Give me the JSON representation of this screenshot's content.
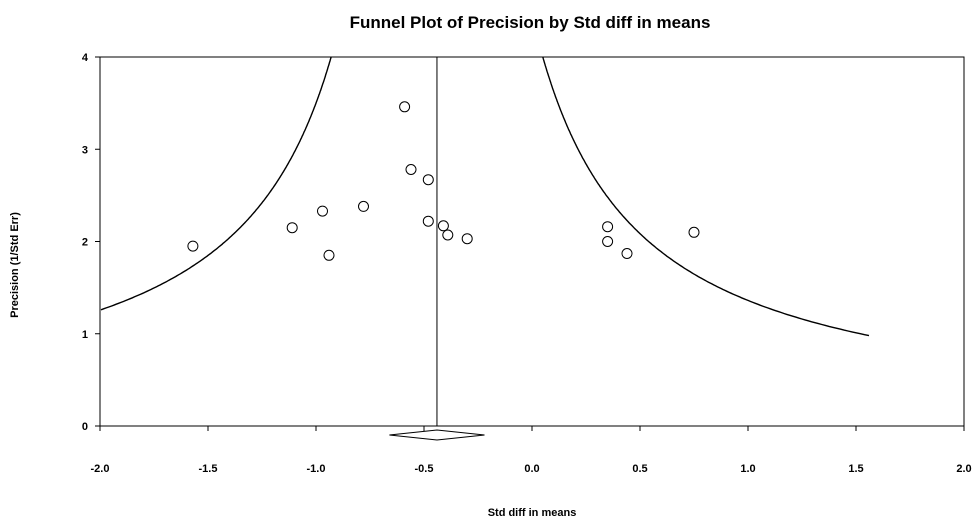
{
  "chart_data": {
    "type": "scatter",
    "title": "Funnel Plot of Precision by Std diff in means",
    "xlabel": "Std diff in means",
    "ylabel": "Precision (1/Std Err)",
    "xlim": [
      -2.0,
      2.0
    ],
    "ylim": [
      0,
      4
    ],
    "x_ticks": [
      "-2.0",
      "-1.5",
      "-1.0",
      "-0.5",
      "0.0",
      "0.5",
      "1.0",
      "1.5",
      "2.0"
    ],
    "y_ticks": [
      "0",
      "1",
      "2",
      "3",
      "4"
    ],
    "points": [
      {
        "x": -1.57,
        "y": 1.95
      },
      {
        "x": -1.11,
        "y": 2.15
      },
      {
        "x": -0.97,
        "y": 2.33
      },
      {
        "x": -0.94,
        "y": 1.85
      },
      {
        "x": -0.78,
        "y": 2.38
      },
      {
        "x": -0.59,
        "y": 3.46
      },
      {
        "x": -0.56,
        "y": 2.78
      },
      {
        "x": -0.48,
        "y": 2.67
      },
      {
        "x": -0.48,
        "y": 2.22
      },
      {
        "x": -0.41,
        "y": 2.17
      },
      {
        "x": -0.39,
        "y": 2.07
      },
      {
        "x": -0.3,
        "y": 2.03
      },
      {
        "x": 0.35,
        "y": 2.16
      },
      {
        "x": 0.35,
        "y": 2.0
      },
      {
        "x": 0.44,
        "y": 1.87
      },
      {
        "x": 0.75,
        "y": 2.1
      }
    ],
    "summary_effect": -0.44,
    "summary_ci": [
      -0.66,
      -0.22
    ],
    "funnel_limits": "95% pseudo-confidence limits",
    "funnel_curve_x_range": [
      -2.0,
      1.56
    ],
    "grid": false,
    "legend": "none"
  }
}
